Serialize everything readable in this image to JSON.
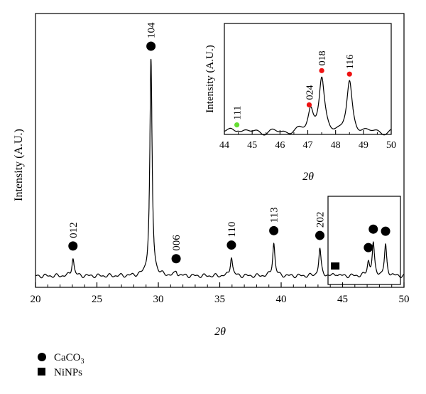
{
  "chart_data": [
    {
      "type": "line",
      "xlabel": "2θ",
      "ylabel": "Intensity (A.U.)",
      "xlim": [
        20,
        50
      ],
      "xticks": [
        20,
        25,
        30,
        35,
        40,
        45,
        50
      ],
      "yticks": "none",
      "series": [
        {
          "peaks": [
            {
              "x": 23.05,
              "h": 0.06
            },
            {
              "x": 29.4,
              "h": 0.72
            },
            {
              "x": 31.45,
              "h": 0.015
            },
            {
              "x": 35.95,
              "h": 0.065
            },
            {
              "x": 39.4,
              "h": 0.11
            },
            {
              "x": 43.15,
              "h": 0.09
            },
            {
              "x": 44.5,
              "h": 0.008
            },
            {
              "x": 47.1,
              "h": 0.045
            },
            {
              "x": 47.5,
              "h": 0.105
            },
            {
              "x": 48.5,
              "h": 0.1
            }
          ]
        }
      ],
      "annotations": [
        {
          "label": "012",
          "x": 23.05,
          "marker": "circle"
        },
        {
          "label": "104",
          "x": 29.4,
          "marker": "circle"
        },
        {
          "label": "006",
          "x": 31.45,
          "marker": "circle"
        },
        {
          "label": "110",
          "x": 35.95,
          "marker": "circle"
        },
        {
          "label": "113",
          "x": 39.4,
          "marker": "circle"
        },
        {
          "label": "202",
          "x": 43.15,
          "marker": "circle"
        },
        {
          "label": "",
          "x": 44.4,
          "marker": "square"
        },
        {
          "label": "",
          "x": 47.1,
          "marker": "circle"
        },
        {
          "label": "",
          "x": 47.5,
          "marker": "circle"
        },
        {
          "label": "",
          "x": 48.5,
          "marker": "circle"
        }
      ]
    },
    {
      "type": "line",
      "xlabel": "2θ",
      "ylabel": "Intensity (A.U.)",
      "xlim": [
        44,
        50
      ],
      "xticks": [
        44,
        45,
        46,
        47,
        48,
        49,
        50
      ],
      "annotations": [
        {
          "label": "111",
          "x": 44.45,
          "color": "#66dd33"
        },
        {
          "label": "024",
          "x": 47.05,
          "color": "#ee1111"
        },
        {
          "label": "018",
          "x": 47.5,
          "color": "#ee1111"
        },
        {
          "label": "116",
          "x": 48.5,
          "color": "#ee1111"
        }
      ]
    }
  ],
  "legend": [
    {
      "marker": "circle",
      "label": "CaCO",
      "subscript": "3"
    },
    {
      "marker": "square",
      "label": "NiNPs",
      "subscript": ""
    }
  ],
  "colors": {
    "axis": "#000000",
    "line": "#000000",
    "inset_green": "#66dd33",
    "inset_red": "#ee1111"
  }
}
